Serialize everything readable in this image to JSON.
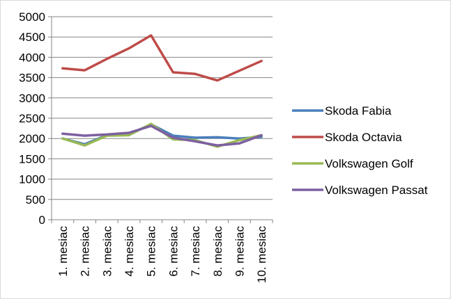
{
  "chart_data": {
    "type": "line",
    "title": "",
    "xlabel": "",
    "ylabel": "",
    "ylim": [
      0,
      5000
    ],
    "ytick_step": 500,
    "yticks": [
      "0",
      "500",
      "1000",
      "1500",
      "2000",
      "2500",
      "3000",
      "3500",
      "4000",
      "4500",
      "5000"
    ],
    "grid": "horizontal-major",
    "legend_position": "right",
    "categories": [
      "1. mesiac",
      "2. mesiac",
      "3. mesiac",
      "4. mesiac",
      "5. mesiac",
      "6. mesiac",
      "7. mesiac",
      "8. mesiac",
      "9. mesiac",
      "10. mesiac"
    ],
    "series": [
      {
        "name": "Skoda Fabia",
        "color": "#4a7ebb",
        "values": [
          2000,
          1860,
          2080,
          2100,
          2350,
          2070,
          2020,
          2030,
          2000,
          2040
        ]
      },
      {
        "name": "Skoda Octavia",
        "color": "#be4b48",
        "values": [
          3730,
          3680,
          3960,
          4220,
          4540,
          3630,
          3590,
          3430,
          3670,
          3910
        ]
      },
      {
        "name": "Volkswagen Golf",
        "color": "#98b954",
        "values": [
          2000,
          1830,
          2070,
          2080,
          2360,
          1980,
          1960,
          1800,
          1960,
          2080
        ]
      },
      {
        "name": "Volkswagen Passat",
        "color": "#7d60a0",
        "values": [
          2120,
          2070,
          2100,
          2140,
          2310,
          2020,
          1930,
          1830,
          1880,
          2080
        ]
      }
    ]
  }
}
